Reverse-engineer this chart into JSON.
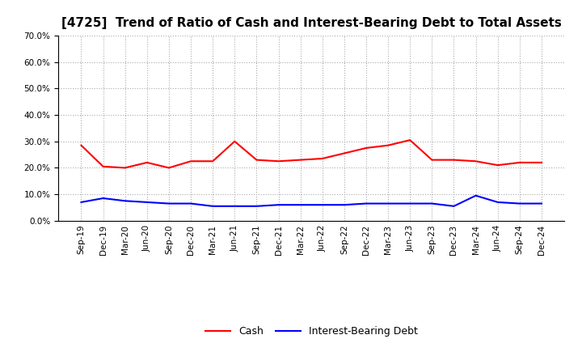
{
  "title": "[4725]  Trend of Ratio of Cash and Interest-Bearing Debt to Total Assets",
  "labels": [
    "Sep-19",
    "Dec-19",
    "Mar-20",
    "Jun-20",
    "Sep-20",
    "Dec-20",
    "Mar-21",
    "Jun-21",
    "Sep-21",
    "Dec-21",
    "Mar-22",
    "Jun-22",
    "Sep-22",
    "Dec-22",
    "Mar-23",
    "Jun-23",
    "Sep-23",
    "Dec-23",
    "Mar-24",
    "Jun-24",
    "Sep-24",
    "Dec-24"
  ],
  "cash": [
    28.5,
    20.5,
    20.0,
    22.0,
    20.0,
    22.5,
    22.5,
    30.0,
    23.0,
    22.5,
    23.0,
    23.5,
    25.5,
    27.5,
    28.5,
    30.5,
    23.0,
    23.0,
    22.5,
    21.0,
    22.0,
    22.0
  ],
  "ibd": [
    7.0,
    8.5,
    7.5,
    7.0,
    6.5,
    6.5,
    5.5,
    5.5,
    5.5,
    6.0,
    6.0,
    6.0,
    6.0,
    6.5,
    6.5,
    6.5,
    6.5,
    5.5,
    9.5,
    7.0,
    6.5,
    6.5
  ],
  "cash_color": "#FF0000",
  "ibd_color": "#0000FF",
  "ylim": [
    0.0,
    70.0
  ],
  "yticks": [
    0.0,
    10.0,
    20.0,
    30.0,
    40.0,
    50.0,
    60.0,
    70.0
  ],
  "bg_color": "#FFFFFF",
  "plot_bg_color": "#FFFFFF",
  "grid_color": "#AAAAAA",
  "title_fontsize": 11,
  "tick_fontsize": 7.5,
  "legend_fontsize": 9,
  "line_width": 1.5
}
